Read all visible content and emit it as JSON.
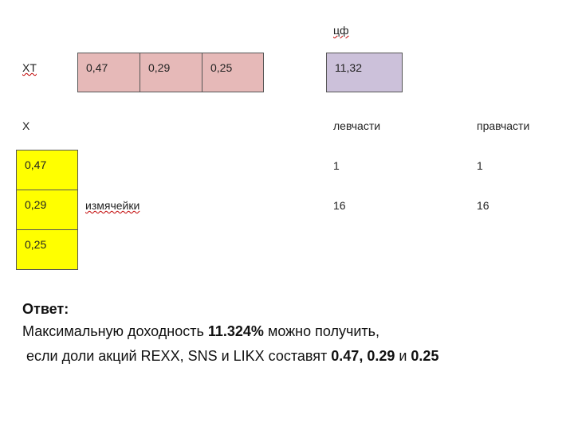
{
  "header": {
    "objective_label": "цф",
    "row_label": "XT"
  },
  "top_row": [
    "0,47",
    "0,29",
    "0,25"
  ],
  "objective_value": "11,32",
  "column_label": "X",
  "constraints_headers": [
    "левчасти",
    "правчасти"
  ],
  "column_cells": [
    "0,47",
    "0,29",
    "0,25"
  ],
  "changing_cells_label": "измячейки",
  "constraints_rows": [
    [
      "1",
      "1"
    ],
    [
      "16",
      "16"
    ]
  ],
  "answer": {
    "heading": "Ответ:",
    "line1": [
      "Максимальную доходность ",
      "11.324%",
      " можно получить,"
    ],
    "line2": [
      "если доли акций REXX, SNS и LIKX составят ",
      "0.47, 0.29",
      " и ",
      "0.25"
    ]
  }
}
